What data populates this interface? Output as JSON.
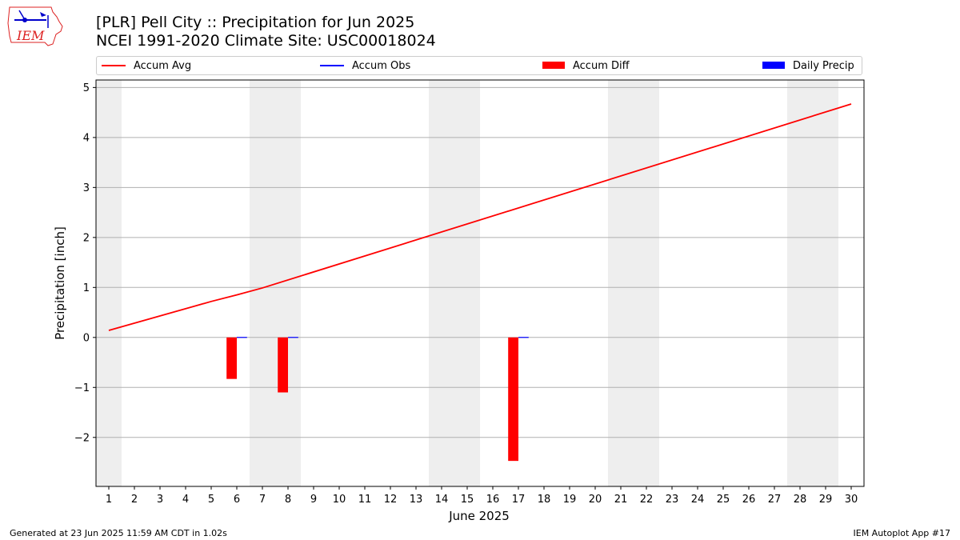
{
  "header": {
    "title_line1": "[PLR] Pell City :: Precipitation for Jun 2025",
    "title_line2": "NCEI 1991-2020 Climate Site: USC00018024"
  },
  "logo": {
    "text": "IEM"
  },
  "legend": {
    "accum_avg": "Accum Avg",
    "accum_obs": "Accum Obs",
    "accum_diff": "Accum Diff",
    "daily_precip": "Daily Precip"
  },
  "footer": {
    "generated": "Generated at 23 Jun 2025 11:59 AM CDT in 1.02s",
    "app": "IEM Autoplot App #17"
  },
  "colors": {
    "accum_avg": "#ff0000",
    "accum_obs": "#0000ff",
    "accum_diff": "#ff0000",
    "daily_precip": "#0000ff",
    "weekend_shade": "#eeeeee",
    "grid": "#b0b0b0"
  },
  "chart_data": {
    "type": "bar",
    "xlabel": "June 2025",
    "ylabel": "Precipitation [inch]",
    "xlim": [
      0.5,
      30.5
    ],
    "ylim": [
      -2.98,
      5.15
    ],
    "x_ticks": [
      1,
      2,
      3,
      4,
      5,
      6,
      7,
      8,
      9,
      10,
      11,
      12,
      13,
      14,
      15,
      16,
      17,
      18,
      19,
      20,
      21,
      22,
      23,
      24,
      25,
      26,
      27,
      28,
      29,
      30
    ],
    "y_ticks": [
      5,
      4,
      3,
      2,
      1,
      0,
      -1,
      -2
    ],
    "y_tick_labels": [
      "5",
      "4",
      "3",
      "2",
      "1",
      "0",
      "−1",
      "−2"
    ],
    "grid": "horizontal",
    "legend_position": "top",
    "weekend_days": [
      1,
      7,
      8,
      14,
      15,
      21,
      22,
      28,
      29
    ],
    "accum_avg": {
      "x": [
        1,
        5,
        6,
        7,
        30
      ],
      "y": [
        0.14,
        0.72,
        0.85,
        0.99,
        4.67
      ]
    },
    "accum_diff": {
      "x": [
        6,
        8,
        17
      ],
      "y": [
        -0.83,
        -1.1,
        -2.47
      ]
    },
    "daily_precip": {
      "x": [
        6,
        8,
        17
      ],
      "y": [
        0.01,
        0.01,
        0.01
      ]
    }
  }
}
